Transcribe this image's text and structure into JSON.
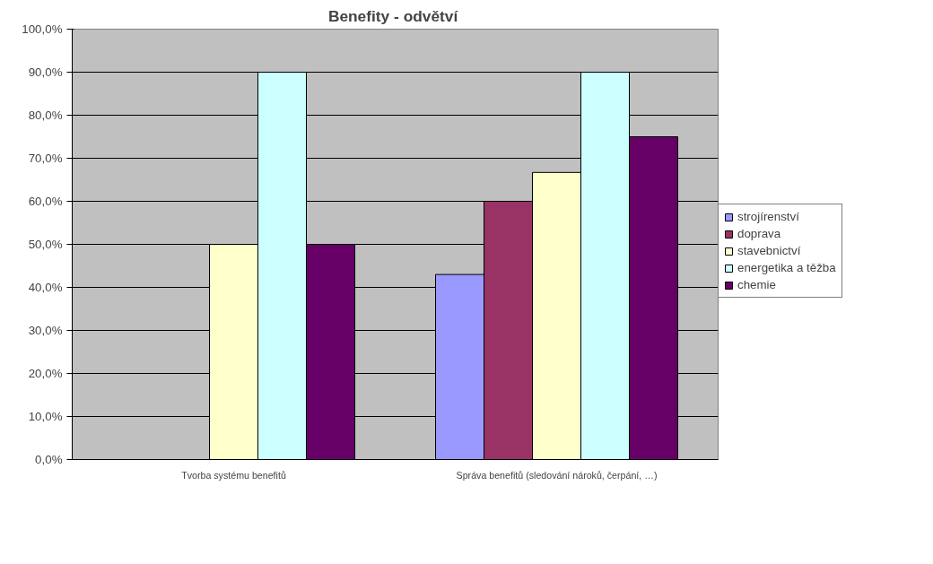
{
  "chart_data": {
    "type": "bar",
    "title": "Benefity  - odvětví",
    "categories": [
      "Tvorba systému benefitů",
      "Správa benefitů (sledování nároků, čerpání, …)"
    ],
    "series": [
      {
        "name": "strojírenství",
        "color": "#9999ff",
        "values": [
          null,
          43
        ]
      },
      {
        "name": "doprava",
        "color": "#993366",
        "values": [
          null,
          60
        ]
      },
      {
        "name": "stavebnictví",
        "color": "#ffffcc",
        "values": [
          50,
          66.7
        ]
      },
      {
        "name": "energetika a těžba",
        "color": "#ccffff",
        "values": [
          90,
          90
        ]
      },
      {
        "name": "chemie",
        "color": "#660066",
        "values": [
          50,
          75
        ]
      }
    ],
    "ylim": [
      0,
      100
    ],
    "yticks": [
      {
        "value": 0,
        "label": "0,0%"
      },
      {
        "value": 10,
        "label": "10,0%"
      },
      {
        "value": 20,
        "label": "20,0%"
      },
      {
        "value": 30,
        "label": "30,0%"
      },
      {
        "value": 40,
        "label": "40,0%"
      },
      {
        "value": 50,
        "label": "50,0%"
      },
      {
        "value": 60,
        "label": "60,0%"
      },
      {
        "value": 70,
        "label": "70,0%"
      },
      {
        "value": 80,
        "label": "80,0%"
      },
      {
        "value": 90,
        "label": "90,0%"
      },
      {
        "value": 100,
        "label": "100,0%"
      }
    ],
    "grid": "y",
    "legend": "right"
  }
}
